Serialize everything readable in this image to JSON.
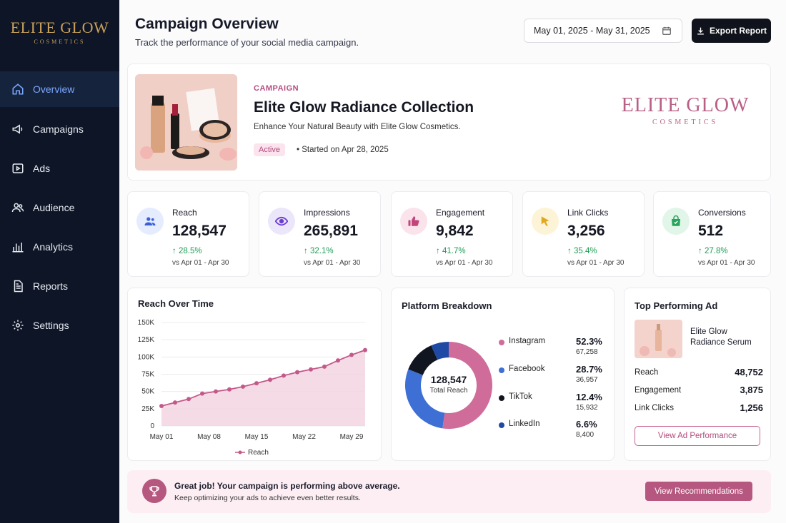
{
  "brand": {
    "name": "ELITE GLOW",
    "sub": "COSMETICS"
  },
  "sidebar": {
    "items": [
      {
        "label": "Overview",
        "icon": "home-icon",
        "active": true
      },
      {
        "label": "Campaigns",
        "icon": "megaphone-icon"
      },
      {
        "label": "Ads",
        "icon": "play-icon"
      },
      {
        "label": "Audience",
        "icon": "users-icon"
      },
      {
        "label": "Analytics",
        "icon": "bar-chart-icon"
      },
      {
        "label": "Reports",
        "icon": "document-icon"
      },
      {
        "label": "Settings",
        "icon": "gear-icon"
      }
    ]
  },
  "header": {
    "title": "Campaign Overview",
    "subtitle": "Track the performance of your social media campaign.",
    "date_range": "May 01, 2025 - May 31, 2025",
    "export_label": "Export Report"
  },
  "campaign": {
    "label": "CAMPAIGN",
    "title": "Elite Glow Radiance Collection",
    "description": "Enhance Your Natural Beauty with Elite Glow Cosmetics.",
    "status": "Active",
    "started": "Started on Apr 28, 2025",
    "logo_name": "ELITE GLOW",
    "logo_sub": "COSMETICS"
  },
  "stats": [
    {
      "label": "Reach",
      "value": "128,547",
      "change": "28.5%",
      "period": "vs Apr 01 - Apr 30",
      "icon": "users-icon",
      "icon_bg": "#e4ecfd",
      "icon_color": "#3b5fd6"
    },
    {
      "label": "Impressions",
      "value": "265,891",
      "change": "32.1%",
      "period": "vs Apr 01 - Apr 30",
      "icon": "eye-icon",
      "icon_bg": "#ece6fb",
      "icon_color": "#6a3fd0"
    },
    {
      "label": "Engagement",
      "value": "9,842",
      "change": "41.7%",
      "period": "vs Apr 01 - Apr 30",
      "icon": "thumbs-up-icon",
      "icon_bg": "#fbe3ec",
      "icon_color": "#c2457a"
    },
    {
      "label": "Link Clicks",
      "value": "3,256",
      "change": "35.4%",
      "period": "vs Apr 01 - Apr 30",
      "icon": "cursor-icon",
      "icon_bg": "#fdf3d6",
      "icon_color": "#e0a81c"
    },
    {
      "label": "Conversions",
      "value": "512",
      "change": "27.8%",
      "period": "vs Apr 01 - Apr 30",
      "icon": "shopping-bag-icon",
      "icon_bg": "#e1f5e9",
      "icon_color": "#25a45a"
    }
  ],
  "reach_chart": {
    "title": "Reach Over Time",
    "legend": "Reach"
  },
  "chart_data": {
    "type": "area",
    "title": "Reach Over Time",
    "xlabel": "",
    "ylabel": "",
    "x_ticks": [
      "May 01",
      "May 08",
      "May 15",
      "May 22",
      "May 29"
    ],
    "y_ticks": [
      "0",
      "25K",
      "50K",
      "75K",
      "100K",
      "125K",
      "150K"
    ],
    "ylim": [
      0,
      150000
    ],
    "xlim": [
      1,
      31
    ],
    "grid": true,
    "legend_position": "bottom",
    "series": [
      {
        "name": "Reach",
        "color": "#c4588a",
        "x": [
          1,
          3,
          5,
          7,
          9,
          11,
          13,
          15,
          17,
          19,
          21,
          23,
          25,
          27,
          29,
          31
        ],
        "y": [
          29000,
          34000,
          39000,
          47000,
          50000,
          53000,
          57000,
          62000,
          67000,
          73000,
          78000,
          82000,
          86000,
          95000,
          103000,
          110000
        ]
      }
    ]
  },
  "platform": {
    "title": "Platform Breakdown",
    "total_value": "128,547",
    "total_label": "Total Reach",
    "items": [
      {
        "name": "Instagram",
        "pct": "52.3%",
        "count": "67,258",
        "share": 52.3,
        "color": "#d06c9a"
      },
      {
        "name": "Facebook",
        "pct": "28.7%",
        "count": "36,957",
        "share": 28.7,
        "color": "#3d6fd4"
      },
      {
        "name": "TikTok",
        "pct": "12.4%",
        "count": "15,932",
        "share": 12.4,
        "color": "#10151f"
      },
      {
        "name": "LinkedIn",
        "pct": "6.6%",
        "count": "8,400",
        "share": 6.6,
        "color": "#1e4aa6"
      }
    ]
  },
  "top_ad": {
    "title": "Top Performing Ad",
    "name": "Elite Glow Radiance Serum",
    "rows": [
      {
        "label": "Reach",
        "value": "48,752"
      },
      {
        "label": "Engagement",
        "value": "3,875"
      },
      {
        "label": "Link Clicks",
        "value": "1,256"
      }
    ],
    "button": "View Ad Performance"
  },
  "banner": {
    "title": "Great job! Your campaign is performing above average.",
    "subtitle": "Keep optimizing your ads to achieve even better results.",
    "button": "View Recommendations"
  }
}
